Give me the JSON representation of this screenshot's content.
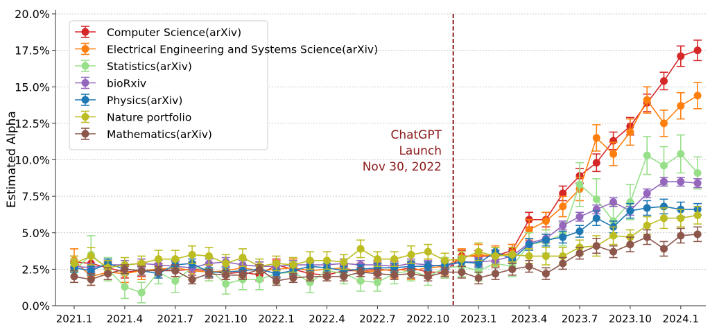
{
  "chart_data": {
    "type": "line",
    "title": "",
    "xlabel": "",
    "ylabel": "Estimated Alpha",
    "ylim": [
      0,
      20
    ],
    "yticks": [
      "0.0%",
      "2.5%",
      "5.0%",
      "7.5%",
      "10.0%",
      "12.5%",
      "15.0%",
      "17.5%",
      "20.0%"
    ],
    "ytick_values": [
      0,
      2.5,
      5,
      7.5,
      10,
      12.5,
      15,
      17.5,
      20
    ],
    "x": [
      "2021.1",
      "2021.2",
      "2021.3",
      "2021.4",
      "2021.5",
      "2021.6",
      "2021.7",
      "2021.8",
      "2021.9",
      "2021.10",
      "2021.11",
      "2021.12",
      "2022.1",
      "2022.2",
      "2022.3",
      "2022.4",
      "2022.5",
      "2022.6",
      "2022.7",
      "2022.8",
      "2022.9",
      "2022.10",
      "2022.11",
      "2022.12",
      "2023.1",
      "2023.2",
      "2023.3",
      "2023.4",
      "2023.5",
      "2023.6",
      "2023.7",
      "2023.8",
      "2023.9",
      "2023.10",
      "2023.11",
      "2023.12",
      "2024.1",
      "2024.2"
    ],
    "xticks": [
      "2021.1",
      "2021.4",
      "2021.7",
      "2021.10",
      "2022.1",
      "2022.4",
      "2022.7",
      "2022.10",
      "2023.1",
      "2023.4",
      "2023.7",
      "2023.10",
      "2024.1"
    ],
    "grid": "horizontal dotted",
    "legend_placement": "top-left",
    "annotation": {
      "lines": [
        "ChatGPT",
        "Launch",
        "Nov 30, 2022"
      ],
      "date": "2022-11-30",
      "color": "#8b1a1a"
    },
    "series": [
      {
        "name": "Computer Science(arXiv)",
        "color": "#d62728",
        "values": [
          3.0,
          2.9,
          2.6,
          2.3,
          2.4,
          2.5,
          2.4,
          2.5,
          2.4,
          2.2,
          2.3,
          2.1,
          2.8,
          2.5,
          2.2,
          2.1,
          2.4,
          2.4,
          2.5,
          2.4,
          2.6,
          2.3,
          2.3,
          3.4,
          3.4,
          3.4,
          3.8,
          5.9,
          5.9,
          7.7,
          8.9,
          9.8,
          11.3,
          12.3,
          13.9,
          15.4,
          17.1,
          17.5
        ],
        "err": [
          0.4,
          0.4,
          0.4,
          0.4,
          0.4,
          0.4,
          0.4,
          0.4,
          0.4,
          0.4,
          0.4,
          0.4,
          0.4,
          0.4,
          0.4,
          0.4,
          0.4,
          0.4,
          0.4,
          0.4,
          0.4,
          0.4,
          0.4,
          0.4,
          0.4,
          0.4,
          0.4,
          0.5,
          0.5,
          0.5,
          0.5,
          0.6,
          0.6,
          0.6,
          0.6,
          0.6,
          0.7,
          0.7
        ]
      },
      {
        "name": "Electrical Engineering and Systems Science(arXiv)",
        "color": "#ff7f0e",
        "values": [
          3.1,
          2.0,
          2.3,
          2.2,
          2.4,
          2.5,
          2.6,
          2.4,
          2.3,
          2.4,
          2.6,
          2.4,
          2.5,
          2.6,
          2.4,
          2.5,
          2.6,
          2.3,
          2.4,
          2.5,
          2.4,
          2.6,
          2.7,
          3.3,
          3.5,
          3.4,
          3.6,
          5.2,
          5.8,
          6.8,
          8.0,
          11.5,
          10.4,
          11.9,
          14.1,
          12.5,
          13.7,
          14.4
        ],
        "err": [
          0.8,
          0.6,
          0.6,
          0.6,
          0.6,
          0.6,
          0.6,
          0.6,
          0.6,
          0.6,
          0.6,
          0.6,
          0.6,
          0.6,
          0.6,
          0.6,
          0.6,
          0.6,
          0.6,
          0.6,
          0.6,
          0.6,
          0.6,
          0.6,
          0.7,
          0.7,
          0.6,
          0.7,
          0.6,
          0.7,
          0.8,
          0.9,
          0.8,
          0.9,
          0.9,
          0.9,
          0.9,
          0.9
        ]
      },
      {
        "name": "Statistics(arXiv)",
        "color": "#98df8a",
        "values": [
          2.4,
          3.5,
          2.5,
          1.3,
          0.9,
          2.3,
          1.7,
          2.6,
          2.5,
          1.5,
          1.8,
          1.8,
          2.2,
          2.3,
          1.6,
          2.4,
          2.2,
          1.7,
          1.6,
          2.2,
          2.4,
          2.0,
          2.6,
          2.7,
          2.4,
          2.9,
          2.7,
          4.2,
          4.4,
          4.9,
          8.3,
          7.3,
          5.8,
          7.1,
          10.3,
          9.6,
          10.4,
          9.1
        ],
        "err": [
          0.8,
          1.3,
          0.8,
          0.8,
          0.7,
          0.8,
          0.8,
          0.8,
          0.8,
          0.7,
          0.7,
          0.7,
          0.7,
          0.7,
          0.7,
          0.7,
          0.7,
          0.7,
          0.6,
          0.7,
          0.7,
          0.6,
          0.7,
          0.7,
          0.7,
          0.7,
          0.7,
          0.8,
          0.8,
          0.8,
          1.5,
          1.4,
          1.1,
          1.2,
          1.3,
          1.3,
          1.3,
          1.1
        ]
      },
      {
        "name": "bioRxiv",
        "color": "#9467bd",
        "values": [
          2.7,
          2.6,
          2.8,
          2.8,
          2.9,
          2.8,
          2.7,
          2.6,
          2.9,
          3.0,
          2.8,
          2.7,
          2.7,
          2.8,
          2.8,
          2.8,
          2.9,
          2.8,
          2.8,
          2.7,
          2.9,
          2.8,
          2.7,
          3.0,
          3.0,
          3.1,
          3.4,
          4.3,
          4.6,
          5.5,
          6.1,
          6.6,
          7.1,
          6.5,
          7.7,
          8.5,
          8.5,
          8.4
        ],
        "err": [
          0.3,
          0.3,
          0.3,
          0.3,
          0.3,
          0.3,
          0.3,
          0.3,
          0.3,
          0.3,
          0.3,
          0.3,
          0.3,
          0.3,
          0.3,
          0.3,
          0.3,
          0.3,
          0.3,
          0.3,
          0.3,
          0.3,
          0.3,
          0.3,
          0.3,
          0.3,
          0.3,
          0.3,
          0.3,
          0.3,
          0.3,
          0.3,
          0.3,
          0.3,
          0.3,
          0.3,
          0.3,
          0.3
        ]
      },
      {
        "name": "Physics(arXiv)",
        "color": "#1f77b4",
        "values": [
          2.6,
          2.4,
          2.9,
          2.5,
          2.4,
          2.2,
          2.8,
          2.9,
          2.3,
          2.3,
          2.4,
          2.5,
          2.2,
          2.4,
          2.7,
          2.6,
          2.4,
          2.5,
          2.6,
          2.6,
          2.7,
          2.7,
          2.8,
          3.0,
          2.9,
          3.7,
          3.2,
          4.2,
          4.5,
          4.7,
          5.1,
          6.0,
          5.4,
          6.5,
          6.7,
          6.8,
          6.6,
          6.6
        ],
        "err": [
          0.3,
          0.3,
          0.3,
          0.3,
          0.3,
          0.3,
          0.3,
          0.3,
          0.3,
          0.3,
          0.3,
          0.3,
          0.3,
          0.3,
          0.3,
          0.3,
          0.3,
          0.3,
          0.3,
          0.3,
          0.3,
          0.3,
          0.3,
          0.3,
          0.3,
          0.3,
          0.3,
          0.4,
          0.4,
          0.4,
          0.4,
          0.5,
          0.4,
          0.5,
          0.5,
          0.5,
          0.5,
          0.4
        ]
      },
      {
        "name": "Nature portfolio",
        "color": "#bcbd22",
        "values": [
          2.9,
          3.4,
          2.6,
          2.8,
          2.9,
          3.2,
          3.2,
          3.5,
          3.4,
          2.9,
          3.3,
          2.7,
          2.9,
          2.8,
          3.1,
          3.1,
          3.0,
          3.9,
          3.2,
          3.2,
          3.5,
          3.7,
          3.1,
          3.2,
          3.7,
          3.4,
          3.5,
          3.4,
          3.4,
          3.4,
          4.0,
          4.1,
          4.8,
          4.7,
          5.5,
          6.0,
          6.0,
          6.2
        ],
        "err": [
          0.5,
          0.6,
          0.5,
          0.5,
          0.5,
          0.6,
          0.6,
          0.6,
          0.6,
          0.6,
          0.6,
          0.5,
          0.5,
          0.5,
          0.6,
          0.6,
          0.5,
          0.6,
          0.5,
          0.5,
          0.6,
          0.5,
          0.5,
          0.5,
          0.6,
          0.6,
          0.5,
          0.5,
          0.6,
          0.6,
          0.5,
          0.7,
          0.6,
          0.5,
          0.6,
          0.7,
          0.6,
          0.6
        ]
      },
      {
        "name": "Mathematics(arXiv)",
        "color": "#8c564b",
        "values": [
          2.0,
          1.8,
          2.2,
          2.5,
          2.4,
          2.4,
          2.4,
          1.8,
          2.2,
          2.1,
          2.1,
          2.5,
          1.7,
          1.9,
          2.0,
          2.0,
          2.0,
          2.3,
          2.2,
          2.1,
          2.2,
          2.0,
          2.3,
          2.3,
          1.9,
          2.2,
          2.5,
          2.7,
          2.2,
          2.9,
          3.6,
          4.1,
          3.7,
          4.2,
          4.7,
          3.9,
          4.8,
          4.9
        ],
        "err": [
          0.4,
          0.4,
          0.4,
          0.3,
          0.3,
          0.3,
          0.4,
          0.3,
          0.3,
          0.3,
          0.3,
          0.3,
          0.3,
          0.3,
          0.3,
          0.3,
          0.3,
          0.3,
          0.3,
          0.3,
          0.3,
          0.3,
          0.3,
          0.4,
          0.4,
          0.4,
          0.4,
          0.4,
          0.4,
          0.4,
          0.4,
          0.5,
          0.4,
          0.5,
          0.5,
          0.5,
          0.5,
          0.5
        ]
      }
    ]
  }
}
